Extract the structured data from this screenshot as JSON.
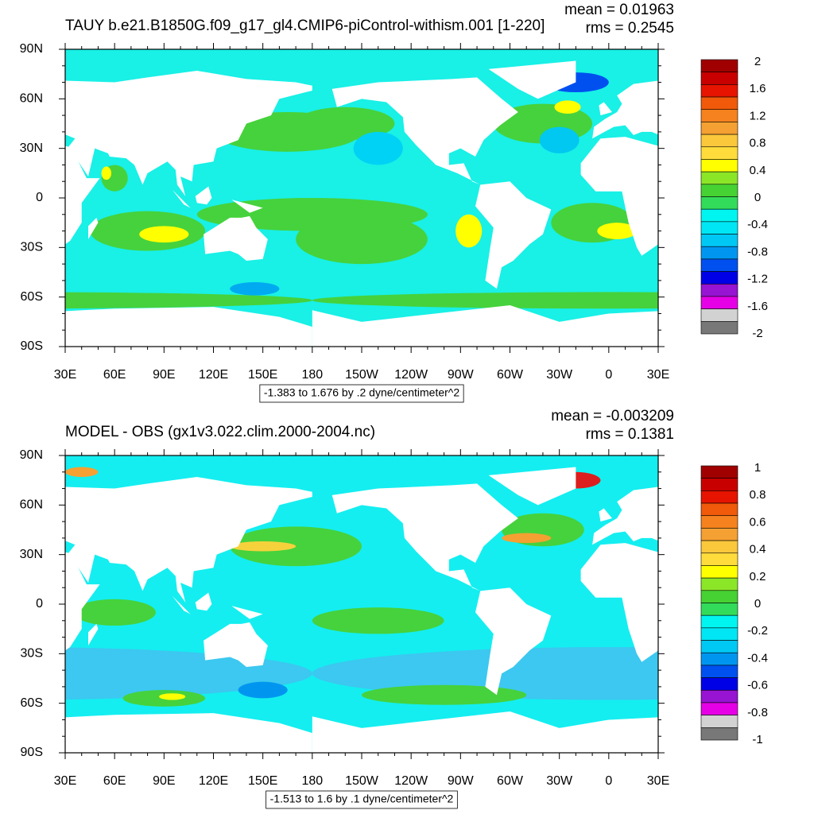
{
  "panels": [
    {
      "title": "TAUY b.e21.B1850G.f09_g17_gl4.CMIP6-piControl-withism.001 [1-220]",
      "mean": "mean = 0.01963",
      "rms": "rms = 0.2545",
      "x_tick_labels": [
        "30E",
        "60E",
        "90E",
        "120E",
        "150E",
        "180",
        "150W",
        "120W",
        "90W",
        "60W",
        "30W",
        "0",
        "30E"
      ],
      "y_tick_labels": [
        "90N",
        "60N",
        "30N",
        "0",
        "30S",
        "60S",
        "90S"
      ],
      "contour_info": "-1.383 to 1.676 by .2 dyne/centimeter^2",
      "colorbar": {
        "labels": [
          2,
          1.6,
          1.2,
          0.8,
          0.4,
          0,
          -0.4,
          -0.8,
          -1.2,
          -1.6,
          -2
        ]
      }
    },
    {
      "title": "MODEL - OBS (gx1v3.022.clim.2000-2004.nc)",
      "mean": "mean = -0.003209",
      "rms": "rms = 0.1381",
      "x_tick_labels": [
        "30E",
        "60E",
        "90E",
        "120E",
        "150E",
        "180",
        "150W",
        "120W",
        "90W",
        "60W",
        "30W",
        "0",
        "30E"
      ],
      "y_tick_labels": [
        "90N",
        "60N",
        "30N",
        "0",
        "30S",
        "60S",
        "90S"
      ],
      "contour_info": "-1.513 to 1.6 by .1 dyne/centimeter^2",
      "colorbar": {
        "labels": [
          1,
          0.8,
          0.6,
          0.4,
          0.2,
          0,
          -0.2,
          -0.4,
          -0.6,
          -0.8,
          -1
        ]
      }
    }
  ]
}
